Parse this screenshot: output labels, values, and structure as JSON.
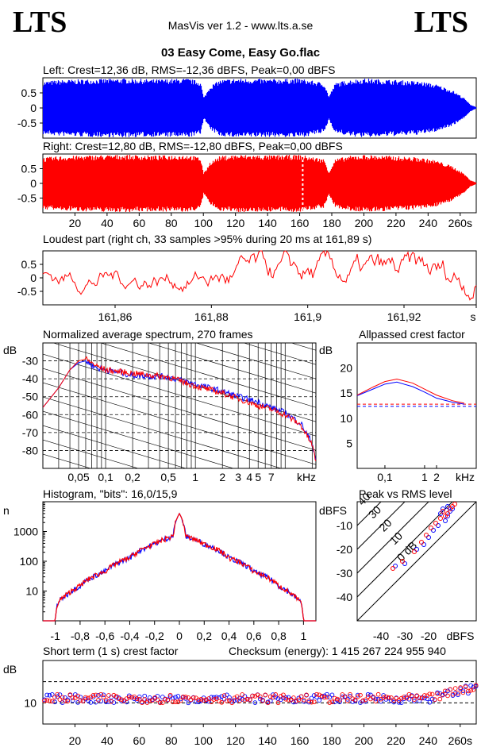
{
  "header": {
    "logo_left": "LTS",
    "logo_right": "LTS",
    "app_title": "MasVis ver 1.2 - www.lts.a.se",
    "track": "03 Easy Come, Easy Go.flac"
  },
  "colors": {
    "left": "#0000ff",
    "right": "#ff0000",
    "grid": "#000000"
  },
  "chart_data": [
    {
      "id": "left-waveform",
      "type": "area",
      "title": "Left: Crest=12,36 dB, RMS=-12,36 dBFS, Peak=0,00 dBFS",
      "yticks": [
        "0.5",
        "0",
        "-0.5"
      ],
      "ylim": [
        -1,
        1
      ],
      "xlim": [
        0,
        270
      ],
      "envelope": {
        "x": [
          0,
          10,
          30,
          50,
          70,
          90,
          98,
          100,
          104,
          110,
          120,
          140,
          160,
          175,
          178,
          182,
          190,
          200,
          220,
          235,
          245,
          255,
          262,
          266,
          270
        ],
        "amp": [
          0.9,
          0.95,
          0.98,
          1.0,
          0.97,
          1.0,
          0.9,
          0.35,
          0.75,
          0.95,
          1.0,
          0.98,
          1.0,
          0.85,
          0.4,
          0.85,
          0.95,
          1.0,
          0.95,
          0.9,
          0.8,
          0.6,
          0.35,
          0.12,
          0.02
        ]
      }
    },
    {
      "id": "right-waveform",
      "type": "area",
      "title": "Right: Crest=12,80 dB, RMS=-12,80 dBFS, Peak=0,00 dBFS",
      "yticks": [
        "0.5",
        "0",
        "-0.5"
      ],
      "ylim": [
        -1,
        1
      ],
      "xlim": [
        0,
        270
      ],
      "xticks": [
        "20",
        "40",
        "60",
        "80",
        "100",
        "120",
        "140",
        "160",
        "180",
        "200",
        "220",
        "240",
        "260s"
      ],
      "marker_x": 161.89,
      "envelope": {
        "x": [
          0,
          10,
          30,
          50,
          70,
          90,
          98,
          100,
          104,
          110,
          120,
          140,
          160,
          175,
          178,
          182,
          190,
          200,
          220,
          235,
          245,
          255,
          262,
          266,
          270
        ],
        "amp": [
          0.9,
          0.95,
          0.98,
          1.0,
          0.97,
          1.0,
          0.9,
          0.35,
          0.75,
          0.95,
          1.0,
          0.98,
          1.0,
          0.85,
          0.4,
          0.85,
          0.95,
          1.0,
          0.95,
          0.9,
          0.8,
          0.6,
          0.35,
          0.12,
          0.02
        ]
      }
    },
    {
      "id": "loudest-part",
      "type": "line",
      "title": "Loudest part (right ch, 33 samples >95% during 20 ms at 161,89 s)",
      "yticks": [
        "0.5",
        "0",
        "-0.5"
      ],
      "ylim": [
        -1,
        1
      ],
      "xlim": [
        161.845,
        161.935
      ],
      "xticks": [
        "161,86",
        "161,88",
        "161,9",
        "161,92",
        "s"
      ]
    },
    {
      "id": "average-spectrum",
      "type": "line",
      "title": "Normalized average spectrum, 270 frames",
      "ylabel": "dB",
      "yticks": [
        "-30",
        "-40",
        "-50",
        "-60",
        "-70",
        "-80"
      ],
      "ylim": [
        -90,
        -20
      ],
      "xticks": [
        "0,05",
        "0,1",
        "0,2",
        "0,5",
        "1",
        "2",
        "3",
        "4",
        "5",
        "7",
        "kHz"
      ],
      "xlim_khz": [
        0.02,
        22
      ],
      "series": [
        {
          "name": "left",
          "x": [
            0.02,
            0.03,
            0.04,
            0.05,
            0.06,
            0.08,
            0.1,
            0.2,
            0.5,
            1,
            2,
            3,
            5,
            7,
            10,
            15,
            20,
            22
          ],
          "y": [
            -56,
            -45,
            -35,
            -31,
            -30,
            -34,
            -35,
            -38,
            -39,
            -43,
            -47,
            -50,
            -53,
            -56,
            -59,
            -65,
            -76,
            -85
          ]
        },
        {
          "name": "right",
          "x": [
            0.02,
            0.03,
            0.04,
            0.05,
            0.06,
            0.08,
            0.1,
            0.2,
            0.5,
            1,
            2,
            3,
            5,
            7,
            10,
            15,
            20,
            22
          ],
          "y": [
            -56,
            -45,
            -35,
            -30,
            -29,
            -33,
            -35,
            -37,
            -39,
            -44,
            -48,
            -51,
            -55,
            -57,
            -60,
            -66,
            -77,
            -86
          ]
        }
      ]
    },
    {
      "id": "allpassed-crest",
      "type": "line",
      "title": "Allpassed crest factor",
      "ylabel": "dB",
      "yticks": [
        "20",
        "15",
        "10",
        "5"
      ],
      "ylim": [
        0,
        25
      ],
      "xticks": [
        "0,1",
        "1",
        "2",
        "kHz"
      ],
      "series": [
        {
          "name": "left",
          "x": [
            0.02,
            0.05,
            0.1,
            0.2,
            0.5,
            1,
            2,
            5,
            10
          ],
          "y": [
            14.5,
            15.8,
            16.8,
            17.2,
            16.3,
            15.2,
            14.0,
            13.2,
            12.8
          ]
        },
        {
          "name": "right",
          "x": [
            0.02,
            0.05,
            0.1,
            0.2,
            0.5,
            1,
            2,
            5,
            10
          ],
          "y": [
            14.6,
            16.2,
            17.3,
            17.8,
            17.0,
            15.8,
            14.6,
            13.5,
            13.0
          ]
        }
      ],
      "reference": {
        "left": 12.36,
        "right": 12.8
      }
    },
    {
      "id": "histogram",
      "type": "line",
      "title": "Histogram, \"bits\": 16,0/15,9",
      "ylabel": "n",
      "yscale": "log",
      "yticks": [
        "1000",
        "100",
        "10"
      ],
      "xticks": [
        "-1",
        "-0,8",
        "-0,6",
        "-0,4",
        "-0,2",
        "0",
        "0,2",
        "0,4",
        "0,6",
        "0,8",
        "1"
      ],
      "xlim": [
        -1.1,
        1.1
      ],
      "x": [
        -1,
        -0.98,
        -0.9,
        -0.8,
        -0.6,
        -0.4,
        -0.2,
        -0.05,
        0,
        0.05,
        0.2,
        0.4,
        0.6,
        0.8,
        0.9,
        0.98,
        1
      ],
      "y": [
        1,
        4,
        8,
        15,
        45,
        130,
        380,
        700,
        4000,
        700,
        380,
        130,
        45,
        15,
        8,
        4,
        1
      ]
    },
    {
      "id": "peak-vs-rms",
      "type": "scatter",
      "title": "Peak vs RMS level",
      "ylabel": "dBFS",
      "xlabel": "dBFS",
      "yticks": [
        "-10",
        "-20",
        "-30",
        "-40"
      ],
      "xticks": [
        "-40",
        "-30",
        "-20"
      ],
      "xlim": [
        -50,
        0
      ],
      "ylim": [
        -50,
        0
      ],
      "diagonal_labels": [
        "40",
        "30",
        "20",
        "10",
        "0 dB"
      ],
      "series": [
        {
          "name": "left",
          "x": [
            -34,
            -30,
            -25,
            -22,
            -20,
            -18,
            -16,
            -15,
            -14,
            -13,
            -12,
            -12,
            -11,
            -10
          ],
          "y": [
            -27,
            -26,
            -20,
            -18,
            -15,
            -12,
            -10,
            -5,
            -3,
            -8,
            -6,
            -2,
            -4,
            -3
          ]
        },
        {
          "name": "right",
          "x": [
            -35,
            -31,
            -26,
            -23,
            -21,
            -19,
            -17,
            -15,
            -14,
            -13,
            -12,
            -11,
            -10,
            -9
          ],
          "y": [
            -28,
            -25,
            -21,
            -17,
            -14,
            -11,
            -9,
            -7,
            -4,
            -6,
            -5,
            -3,
            -2,
            -1
          ]
        }
      ]
    },
    {
      "id": "short-term-crest",
      "type": "scatter",
      "title": "Short term (1 s) crest factor",
      "checksum": "Checksum (energy):  1 415 267 224 955 940",
      "ylabel": "dB",
      "yticks": [
        "10"
      ],
      "ylim": [
        0,
        30
      ],
      "xlim": [
        0,
        270
      ],
      "xticks": [
        "20",
        "40",
        "60",
        "80",
        "100",
        "120",
        "140",
        "160",
        "180",
        "200",
        "220",
        "240",
        "260s"
      ]
    }
  ]
}
